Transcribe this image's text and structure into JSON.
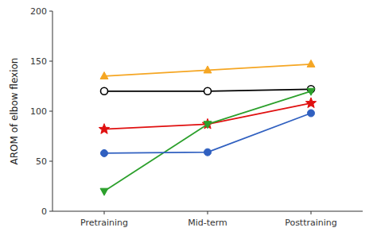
{
  "chart_data": {
    "type": "line",
    "categories": [
      "Pretraining",
      "Mid-term",
      "Posttraining"
    ],
    "y_label": "AROM of elbow flexion",
    "ylim": [
      0,
      200
    ],
    "yticks": [
      0,
      50,
      100,
      150,
      200
    ],
    "grid": false,
    "series": [
      {
        "color": "#F5A623",
        "marker": "triangle-up",
        "values": [
          135,
          141,
          147
        ]
      },
      {
        "color": "#000000",
        "marker": "circle-open",
        "values": [
          120,
          120,
          122
        ]
      },
      {
        "color": "#E01010",
        "marker": "star",
        "values": [
          82,
          87,
          108
        ]
      },
      {
        "color": "#2CA02C",
        "marker": "triangle-down",
        "values": [
          20,
          87,
          120
        ]
      },
      {
        "color": "#3060C0",
        "marker": "circle",
        "values": [
          58,
          59,
          98
        ]
      }
    ]
  }
}
